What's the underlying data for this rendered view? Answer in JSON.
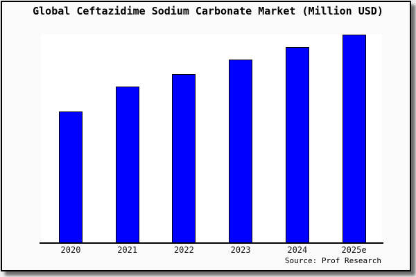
{
  "chart_data": {
    "type": "bar",
    "title": "Global Ceftazidime Sodium Carbonate Market (Million USD)",
    "categories": [
      "2020",
      "2021",
      "2022",
      "2023",
      "2024",
      "2025e"
    ],
    "values": [
      63,
      75,
      81,
      88,
      94,
      100
    ],
    "values_are_percent_of_max": true,
    "xlabel": "",
    "ylabel": "",
    "ylim": [
      0,
      100
    ],
    "grid": false,
    "legend": false,
    "y_axis_visible": false,
    "bar_color": "#0000FF",
    "bar_border_color": "#000000",
    "source_label": "Source: Prof Research"
  }
}
